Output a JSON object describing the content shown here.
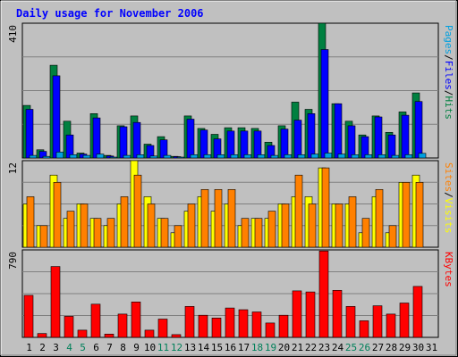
{
  "chart_data": {
    "type": "bar",
    "title": "Daily usage for November 2006",
    "categories": [
      "1",
      "2",
      "3",
      "4",
      "5",
      "6",
      "7",
      "8",
      "9",
      "10",
      "11",
      "12",
      "13",
      "14",
      "15",
      "16",
      "17",
      "18",
      "19",
      "20",
      "21",
      "22",
      "23",
      "24",
      "25",
      "26",
      "27",
      "28",
      "29",
      "30",
      "31"
    ],
    "weekend_days": [
      "4",
      "5",
      "11",
      "12",
      "18",
      "19",
      "25",
      "26"
    ],
    "panels": [
      {
        "id": "pages_files_hits",
        "max_label": "410",
        "ylim": [
          0,
          410
        ],
        "axis_label": [
          "Pages",
          "/",
          "Files",
          "/",
          "Hits"
        ],
        "axis_label_colors": [
          "#00a0e0",
          "#000000",
          "#0000ff",
          "#000000",
          "#008040"
        ],
        "series": [
          {
            "name": "Hits",
            "color": "#008040",
            "values": [
              160,
              25,
              282,
              112,
              15,
              135,
              8,
              98,
              128,
              42,
              65,
              5,
              128,
              90,
              72,
              92,
              92,
              90,
              48,
              98,
              170,
              148,
              410,
              165,
              112,
              70,
              128,
              78,
              140,
              198,
              0
            ]
          },
          {
            "name": "Files",
            "color": "#0000ff",
            "values": [
              148,
              20,
              250,
              70,
              12,
              122,
              6,
              95,
              108,
              38,
              55,
              4,
              118,
              85,
              58,
              82,
              82,
              82,
              38,
              88,
              115,
              135,
              330,
              165,
              98,
              65,
              125,
              70,
              130,
              172,
              0
            ]
          },
          {
            "name": "Pages",
            "color": "#00a0e0",
            "values": [
              8,
              5,
              18,
              10,
              8,
              12,
              2,
              8,
              10,
              6,
              8,
              2,
              10,
              10,
              10,
              10,
              10,
              10,
              8,
              10,
              10,
              12,
              15,
              12,
              10,
              10,
              10,
              8,
              10,
              14,
              0
            ]
          }
        ]
      },
      {
        "id": "sites_visits",
        "max_label": "12",
        "ylim": [
          0,
          12
        ],
        "axis_label": [
          "Sites",
          "/",
          "Visits"
        ],
        "axis_label_colors": [
          "#ff8000",
          "#000000",
          "#ffff00"
        ],
        "series": [
          {
            "name": "Visits",
            "color": "#ffff00",
            "values": [
              6,
              3,
              10,
              4,
              6,
              4,
              3,
              6,
              12,
              7,
              4,
              2,
              5,
              7,
              5,
              6,
              3,
              4,
              4,
              6,
              7,
              7,
              11,
              6,
              6,
              2,
              7,
              2,
              9,
              10,
              0
            ]
          },
          {
            "name": "Sites",
            "color": "#ff8000",
            "values": [
              7,
              3,
              9,
              5,
              6,
              4,
              4,
              7,
              10,
              6,
              4,
              3,
              6,
              8,
              8,
              8,
              4,
              4,
              5,
              6,
              10,
              6,
              11,
              6,
              7,
              4,
              8,
              3,
              9,
              9,
              0
            ]
          }
        ]
      },
      {
        "id": "kbytes",
        "max_label": "790",
        "ylim": [
          0,
          790
        ],
        "axis_label": [
          "KBytes"
        ],
        "axis_label_colors": [
          "#ff0000"
        ],
        "series": [
          {
            "name": "KBytes",
            "color": "#ff0000",
            "values": [
              380,
              35,
              640,
              190,
              65,
              300,
              30,
              210,
              320,
              65,
              165,
              25,
              280,
              200,
              175,
              265,
              250,
              230,
              130,
              200,
              420,
              410,
              780,
              425,
              280,
              150,
              285,
              210,
              310,
              460,
              0
            ]
          }
        ]
      }
    ]
  }
}
